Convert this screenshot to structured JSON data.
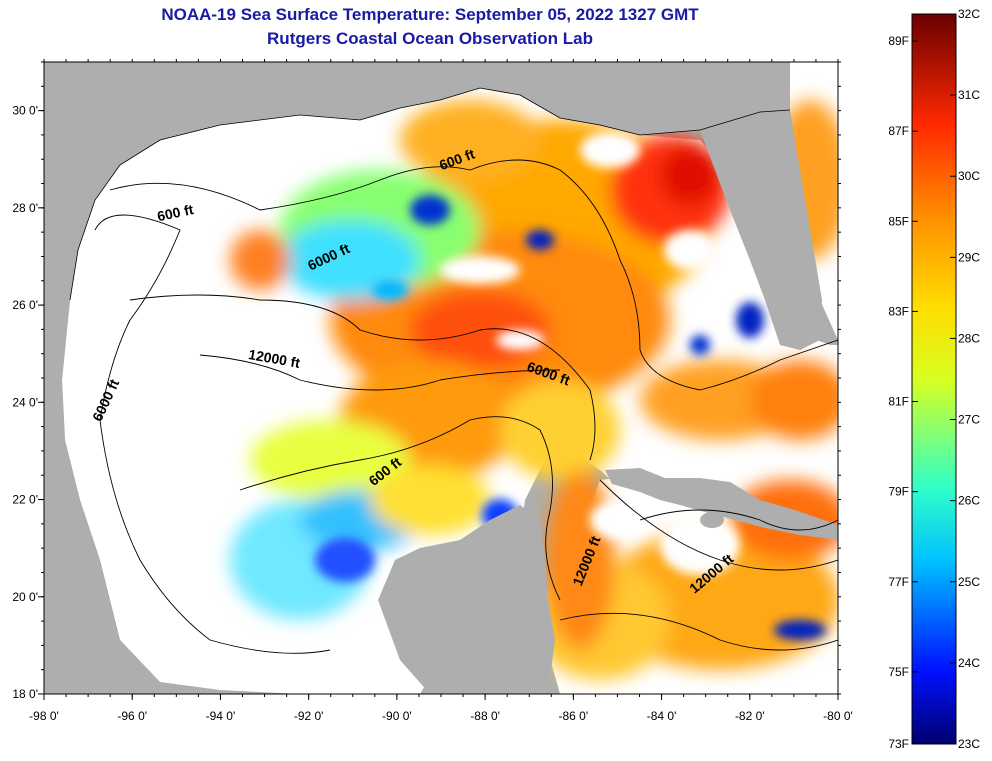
{
  "header": {
    "title": "NOAA-19 Sea Surface Temperature:  September 05, 2022 1327 GMT",
    "subtitle": "Rutgers Coastal Ocean Observation Lab"
  },
  "map": {
    "lon_range": [
      -98,
      -80
    ],
    "lat_range": [
      18,
      31
    ],
    "x_ticks": [
      {
        "value": -98,
        "label": "-98 0'"
      },
      {
        "value": -96,
        "label": "-96 0'"
      },
      {
        "value": -94,
        "label": "-94 0'"
      },
      {
        "value": -92,
        "label": "-92 0'"
      },
      {
        "value": -90,
        "label": "-90 0'"
      },
      {
        "value": -88,
        "label": "-88 0'"
      },
      {
        "value": -86,
        "label": "-86 0'"
      },
      {
        "value": -84,
        "label": "-84 0'"
      },
      {
        "value": -82,
        "label": "-82 0'"
      },
      {
        "value": -80,
        "label": "-80 0'"
      }
    ],
    "y_ticks": [
      {
        "value": 30,
        "label": "30 0'"
      },
      {
        "value": 28,
        "label": "28 0'"
      },
      {
        "value": 26,
        "label": "26 0'"
      },
      {
        "value": 24,
        "label": "24 0'"
      },
      {
        "value": 22,
        "label": "22 0'"
      },
      {
        "value": 20,
        "label": "20 0'"
      },
      {
        "value": 18,
        "label": "18 0'"
      }
    ],
    "contour_labels": [
      {
        "text": "600 ft",
        "lon": -95.0,
        "lat": 27.8,
        "angle": -12
      },
      {
        "text": "600 ft",
        "lon": -88.6,
        "lat": 28.9,
        "angle": -20
      },
      {
        "text": "6000 ft",
        "lon": -91.5,
        "lat": 26.9,
        "angle": -25
      },
      {
        "text": "12000 ft",
        "lon": -92.8,
        "lat": 24.8,
        "angle": 10
      },
      {
        "text": "6000 ft",
        "lon": -96.5,
        "lat": 24.0,
        "angle": -65
      },
      {
        "text": "6000 ft",
        "lon": -86.6,
        "lat": 24.5,
        "angle": 20
      },
      {
        "text": "600 ft",
        "lon": -90.2,
        "lat": 22.5,
        "angle": -38
      },
      {
        "text": "12000 ft",
        "lon": -85.6,
        "lat": 20.7,
        "angle": -68
      },
      {
        "text": "12000 ft",
        "lon": -82.8,
        "lat": 20.4,
        "angle": -40
      }
    ],
    "colors": {
      "land": "#aeaeae",
      "cloud": "#ffffff",
      "frame": "#000000"
    }
  },
  "colorbar": {
    "min_c": 23,
    "max_c": 32,
    "c_labels": [
      "32C",
      "31C",
      "30C",
      "29C",
      "28C",
      "27C",
      "26C",
      "25C",
      "24C",
      "23C"
    ],
    "f_labels": [
      "89F",
      "87F",
      "85F",
      "83F",
      "81F",
      "79F",
      "77F",
      "75F",
      "73F"
    ],
    "f_values": [
      89,
      87,
      85,
      83,
      81,
      79,
      77,
      75,
      73
    ]
  }
}
